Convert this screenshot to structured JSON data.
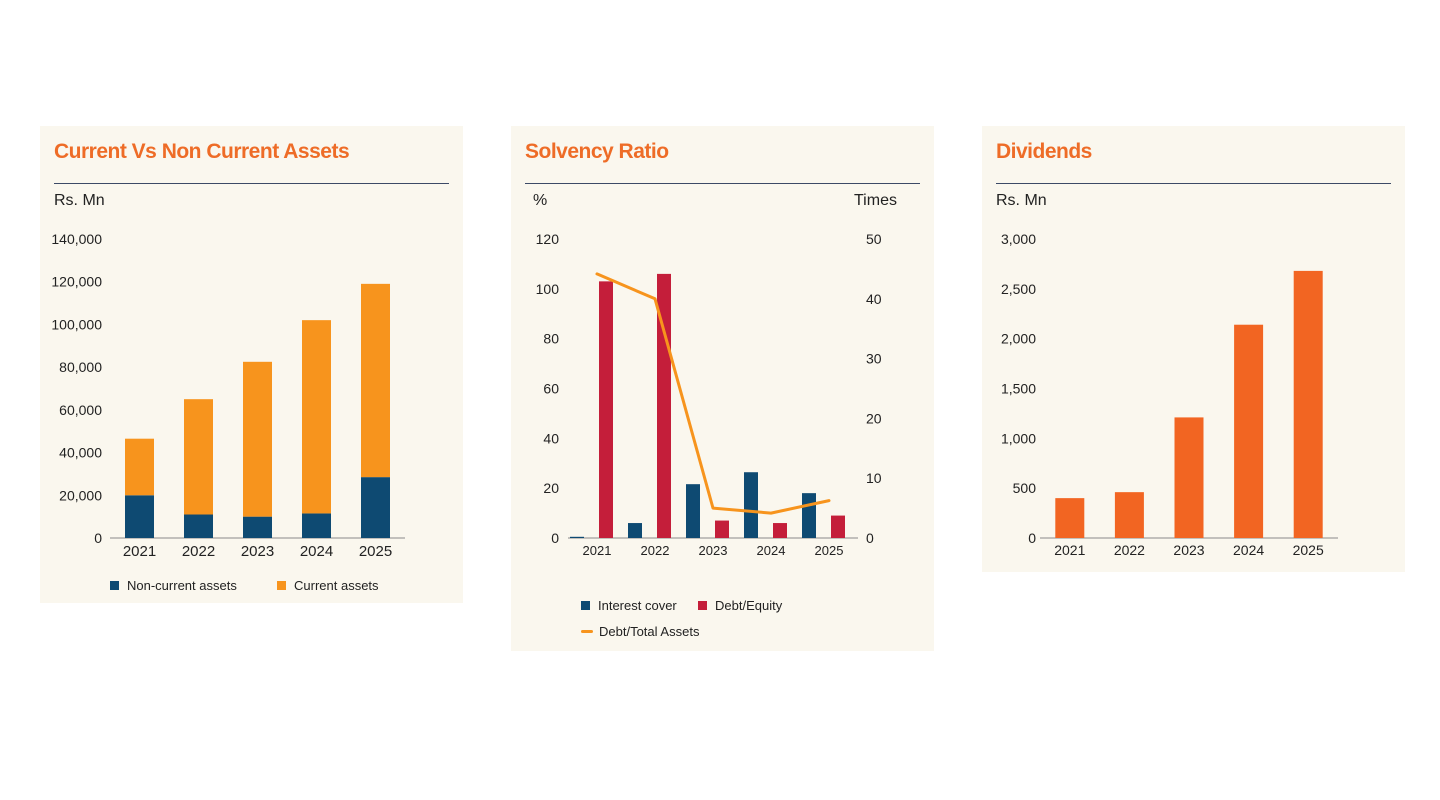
{
  "colors": {
    "title": "#ee6c27",
    "panel_bg": "#faf7ee",
    "non_current": "#0e4a72",
    "current": "#f7941d",
    "interest_cover": "#0e4a72",
    "debt_equity": "#c41e3a",
    "debt_total_assets": "#f7941d",
    "dividends": "#f26522"
  },
  "assets": {
    "title": "Current Vs Non Current Assets",
    "unit": "Rs. Mn",
    "legend": {
      "non_current": "Non-current assets",
      "current": "Current assets"
    }
  },
  "solvency": {
    "title": "Solvency Ratio",
    "unit_left": "%",
    "unit_right": "Times",
    "legend": {
      "interest_cover": "Interest cover",
      "debt_equity": "Debt/Equity",
      "debt_total_assets": "Debt/Total Assets"
    }
  },
  "dividends": {
    "title": "Dividends",
    "unit": "Rs. Mn"
  },
  "chart_data": [
    {
      "type": "bar",
      "stacked": true,
      "title": "Current Vs Non Current Assets",
      "ylabel": "Rs. Mn",
      "categories": [
        "2021",
        "2022",
        "2023",
        "2024",
        "2025"
      ],
      "ylim": [
        0,
        140000
      ],
      "yticks": [
        "0",
        "20,000",
        "40,000",
        "60,000",
        "80,000",
        "100,000",
        "120,000",
        "140,000"
      ],
      "legend_position": "bottom",
      "series": [
        {
          "name": "Non-current assets",
          "values": [
            20000,
            11000,
            10000,
            11500,
            28500
          ]
        },
        {
          "name": "Current assets",
          "values": [
            26500,
            54000,
            72500,
            90500,
            90500
          ]
        }
      ]
    },
    {
      "type": "bar",
      "title": "Solvency Ratio",
      "ylabel": "%",
      "ylabel_right": "Times",
      "categories": [
        "2021",
        "2022",
        "2023",
        "2024",
        "2025"
      ],
      "ylim": [
        0,
        120
      ],
      "ylim_right": [
        0,
        50
      ],
      "yticks": [
        "0",
        "20",
        "40",
        "60",
        "80",
        "100",
        "120"
      ],
      "yticks_right": [
        "0",
        "10",
        "20",
        "30",
        "40",
        "50"
      ],
      "legend_position": "bottom",
      "series": [
        {
          "name": "Interest cover",
          "kind": "bar",
          "axis": "right",
          "values": [
            0.2,
            2.5,
            9,
            11,
            7.5
          ]
        },
        {
          "name": "Debt/Equity",
          "kind": "bar",
          "axis": "left",
          "values": [
            103,
            106,
            7,
            6,
            9
          ]
        },
        {
          "name": "Debt/Total Assets",
          "kind": "line",
          "axis": "left",
          "values": [
            106,
            96,
            12,
            10,
            15
          ]
        }
      ]
    },
    {
      "type": "bar",
      "title": "Dividends",
      "ylabel": "Rs. Mn",
      "categories": [
        "2021",
        "2022",
        "2023",
        "2024",
        "2025"
      ],
      "ylim": [
        0,
        3000
      ],
      "yticks": [
        "0",
        "500",
        "1,000",
        "1,500",
        "2,000",
        "2,500",
        "3,000"
      ],
      "series": [
        {
          "values": [
            400,
            460,
            1210,
            2140,
            2680
          ]
        }
      ]
    }
  ]
}
